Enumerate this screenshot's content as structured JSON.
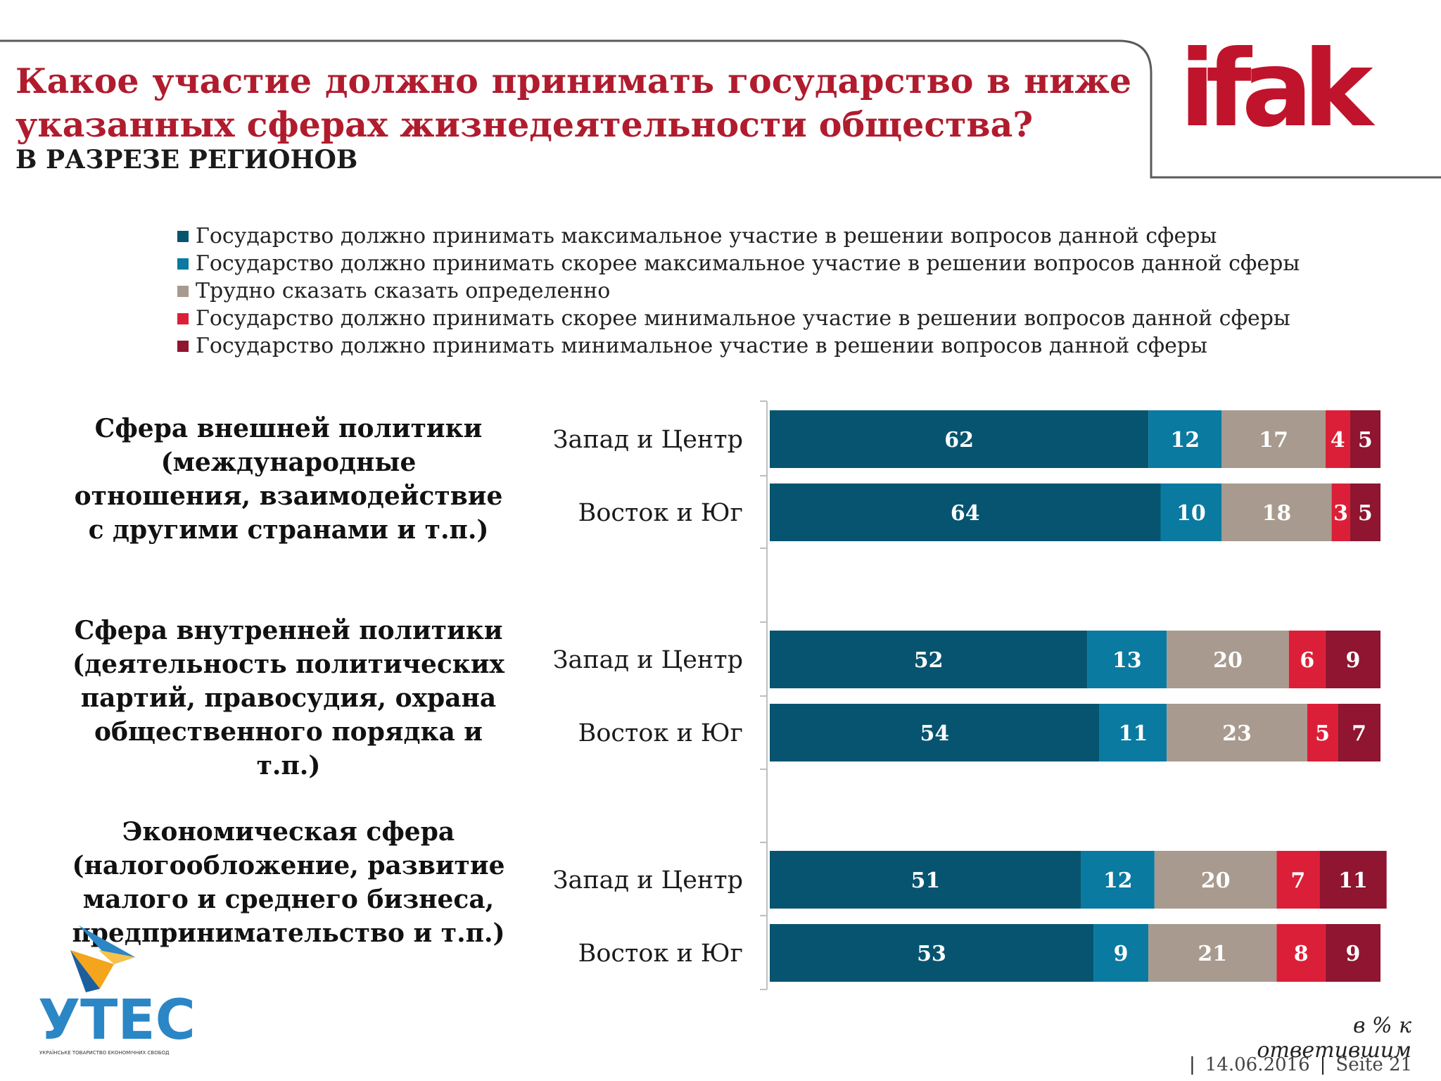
{
  "header": {
    "title": "Какое участие должно принимать государство в ниже указанных сферах жизнедеятельности общества?",
    "subtitle": "В РАЗРЕЗЕ РЕГИОНОВ",
    "logo_text": "ifak"
  },
  "colors": {
    "max": "#065470",
    "rather_max": "#0a7aa0",
    "hard_to_say": "#a89a8e",
    "rather_min": "#dc1f38",
    "min": "#8f1530",
    "title_red": "#b01c2e",
    "logo_red": "#c0142c"
  },
  "legend": [
    {
      "label": "Государство должно принимать максимальное участие в решении вопросов данной сферы",
      "color": "#065470"
    },
    {
      "label": "Государство должно принимать  скорее максимальное участие в решении вопросов данной сферы",
      "color": "#0a7aa0"
    },
    {
      "label": "Трудно сказать сказать определенно",
      "color": "#a89a8e"
    },
    {
      "label": "Государство должно принимать скорее минимальное участие в решении вопросов данной сферы",
      "color": "#dc1f38"
    },
    {
      "label": "Государство должно принимать минимальное участие в решении вопросов данной сферы",
      "color": "#8f1530"
    }
  ],
  "sections": [
    {
      "label": "Сфера внешней политики (международные отношения, взаимодействие с другими странами и т.п.)"
    },
    {
      "label": "Сфера внутренней политики (деятельность политических партий, правосудия, охрана общественного порядка и т.п.)"
    },
    {
      "label": "Экономическая сфера (налогообложение, развитие малого и среднего бизнеса, предпринимательство и т.п.)"
    }
  ],
  "chart_data": {
    "type": "bar",
    "orientation": "horizontal",
    "stacked": true,
    "title": "Какое участие должно принимать государство в ниже указанных сферах жизнедеятельности общества?",
    "subtitle": "В РАЗРЕЗЕ РЕГИОНОВ",
    "unit_note": "в % к ответившим",
    "xlim": [
      0,
      100
    ],
    "categories": [
      "Запад и Центр",
      "Восток и Юг",
      "Запад и Центр",
      "Восток и Юг",
      "Запад и Центр",
      "Восток и Юг"
    ],
    "groups": [
      "Сфера внешней политики (международные отношения, взаимодействие с другими странами и т.п.)",
      "Сфера внутренней политики (деятельность политических партий, правосудия, охрана общественного порядка и т.п.)",
      "Экономическая сфера (налогообложение, развитие малого и среднего бизнеса, предпринимательство и т.п.)"
    ],
    "category_group": [
      0,
      0,
      1,
      1,
      2,
      2
    ],
    "series": [
      {
        "name": "Государство должно принимать максимальное участие в решении вопросов данной сферы",
        "key": "max",
        "values": [
          62,
          64,
          52,
          54,
          51,
          53
        ]
      },
      {
        "name": "Государство должно принимать  скорее максимальное участие в решении вопросов данной сферы",
        "key": "rather_max",
        "values": [
          12,
          10,
          13,
          11,
          12,
          9
        ]
      },
      {
        "name": "Трудно сказать сказать определенно",
        "key": "hard_to_say",
        "values": [
          17,
          18,
          20,
          23,
          20,
          21
        ]
      },
      {
        "name": "Государство должно принимать скорее минимальное участие в решении вопросов данной сферы",
        "key": "rather_min",
        "values": [
          4,
          3,
          6,
          5,
          7,
          8
        ]
      },
      {
        "name": "Государство должно принимать минимальное участие в решении вопросов данной сферы",
        "key": "min",
        "values": [
          5,
          5,
          9,
          7,
          11,
          9
        ]
      }
    ]
  },
  "footer": {
    "note": "в % к ответившим",
    "date": "14.06.2016",
    "page": "Seite  21"
  },
  "utec": {
    "name": "УТЕС",
    "subtitle": "УКРАЇНСЬКЕ ТОВАРИСТВО ЕКОНОМІЧНИХ СВОБОД"
  }
}
